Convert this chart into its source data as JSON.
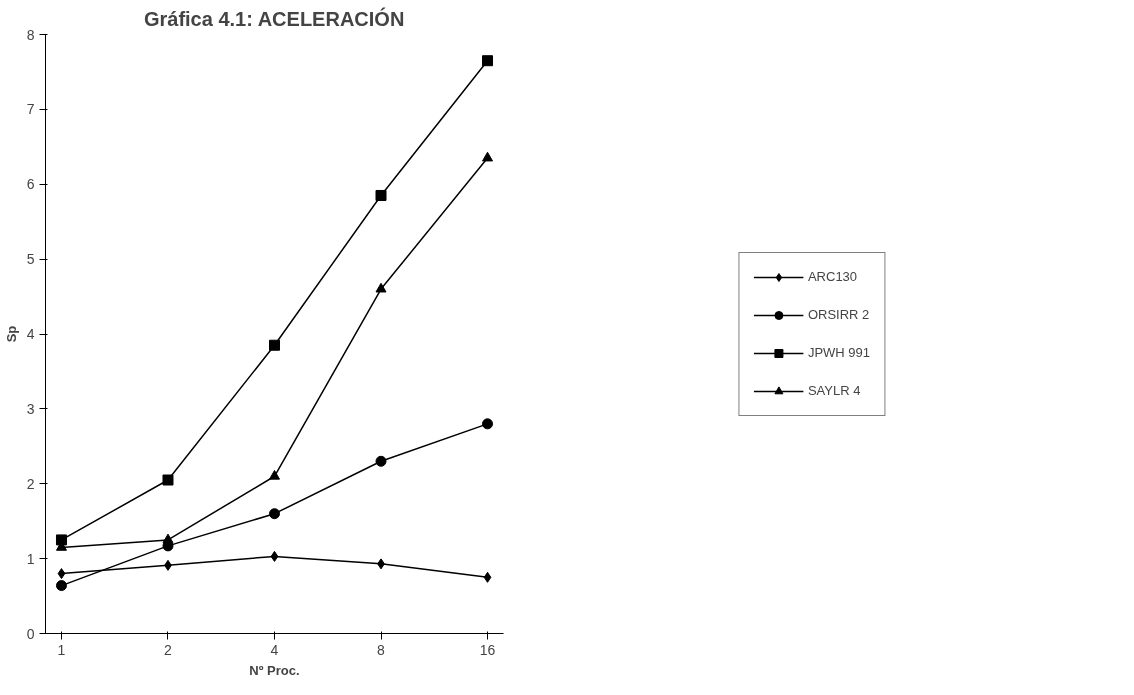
{
  "chart_data": {
    "type": "line",
    "title": "Gráfica 4.1: ACELERACIÓN",
    "xlabel": "Nº Proc.",
    "ylabel": "Sp",
    "categories": [
      "1",
      "2",
      "4",
      "8",
      "16"
    ],
    "ylim": [
      0,
      8
    ],
    "yticks": [
      0,
      1,
      2,
      3,
      4,
      5,
      6,
      7,
      8
    ],
    "grid": false,
    "legend": "right",
    "series": [
      {
        "name": "ARC130",
        "color": "#000000",
        "marker": "diamond",
        "values": [
          0.8,
          0.91,
          1.03,
          0.93,
          0.75
        ]
      },
      {
        "name": "ORSIRR 2",
        "color": "#000000",
        "marker": "circle",
        "values": [
          0.64,
          1.17,
          1.6,
          2.3,
          2.8
        ]
      },
      {
        "name": "JPWH 991",
        "color": "#000000",
        "marker": "square",
        "values": [
          1.25,
          2.05,
          3.85,
          5.85,
          7.65
        ]
      },
      {
        "name": "SAYLR 4",
        "color": "#000000",
        "marker": "triangle",
        "values": [
          1.15,
          1.25,
          2.1,
          4.6,
          6.35
        ]
      }
    ]
  }
}
